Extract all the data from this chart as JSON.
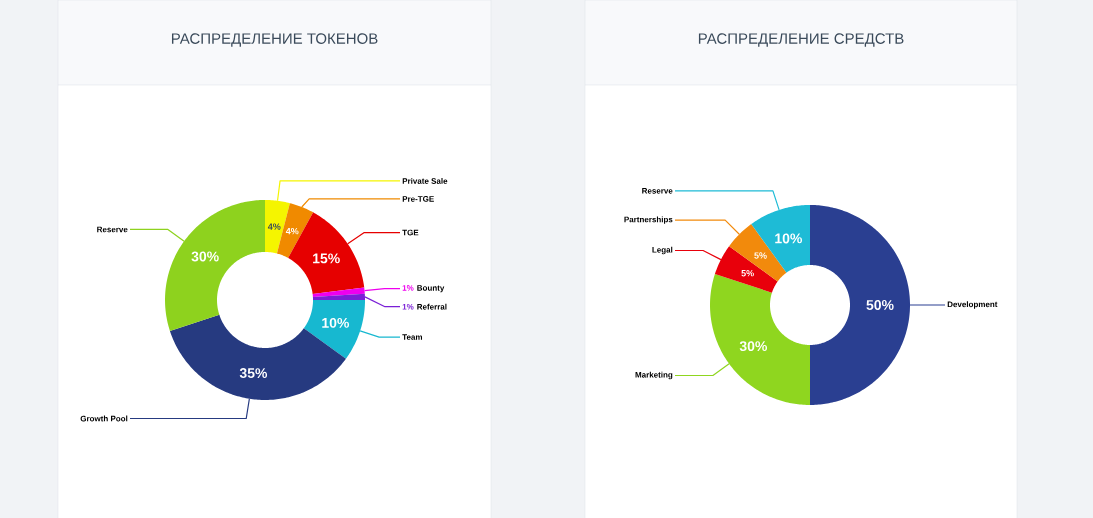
{
  "chart_data": [
    {
      "type": "donut",
      "title": "РАСПРЕДЕЛЕНИЕ ТОКЕНОВ",
      "categories": [
        "Private Sale",
        "Pre-TGE",
        "TGE",
        "Bounty",
        "Referral",
        "Team",
        "Growth Pool",
        "Reserve"
      ],
      "values": [
        4,
        4,
        15,
        1,
        1,
        10,
        35,
        30
      ],
      "value_labels": [
        "4%",
        "4%",
        "15%",
        "1%",
        "1%",
        "10%",
        "35%",
        "30%"
      ],
      "colors": [
        "#f5f500",
        "#f08a00",
        "#e60000",
        "#ee00ee",
        "#7a1fd6",
        "#17b8d0",
        "#263a80",
        "#8ed21e"
      ]
    },
    {
      "type": "donut",
      "title": "РАСПРЕДЕЛЕНИЕ СРЕДСТВ",
      "categories": [
        "Development",
        "Marketing",
        "Legal",
        "Partnerships",
        "Reserve"
      ],
      "values": [
        50,
        30,
        5,
        5,
        10
      ],
      "value_labels": [
        "50%",
        "30%",
        "5%",
        "5%",
        "10%"
      ],
      "colors": [
        "#2a3f91",
        "#8fd61f",
        "#e8000b",
        "#f28a0c",
        "#1ebbd6"
      ]
    }
  ]
}
